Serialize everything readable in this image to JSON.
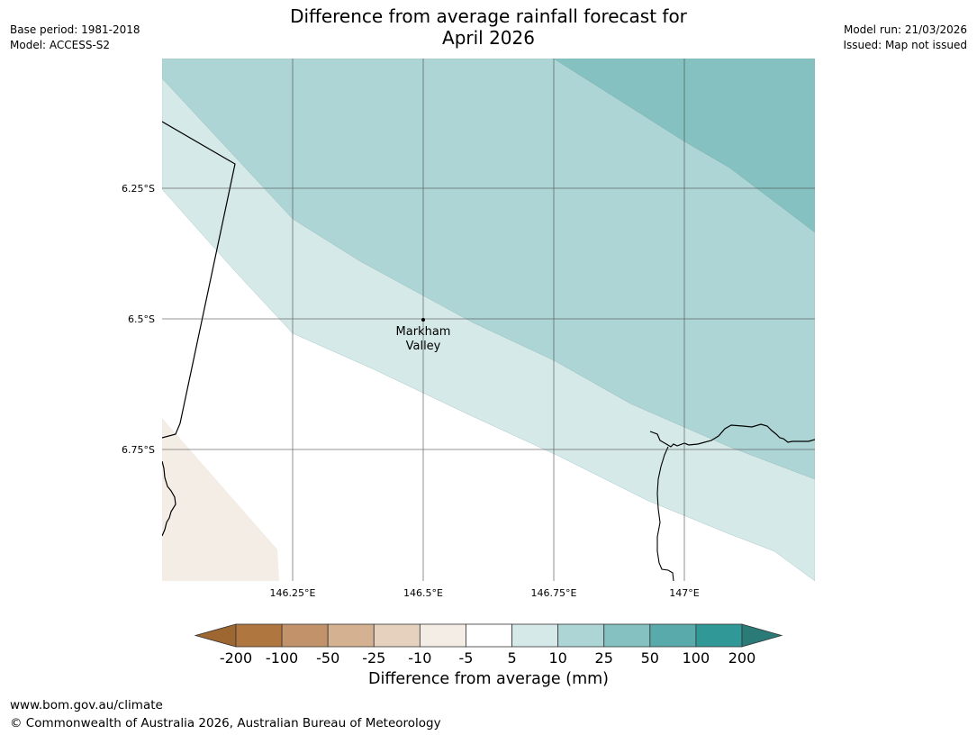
{
  "header": {
    "title_line1": "Difference from average rainfall forecast for",
    "title_line2": "April 2026",
    "base_period": "Base period: 1981-2018",
    "model": "Model: ACCESS-S2",
    "model_run": "Model run: 21/03/2026",
    "issued": "Issued: Map not issued"
  },
  "map": {
    "lat_labels": [
      "6.25°S",
      "6.5°S",
      "6.75°S"
    ],
    "lon_labels": [
      "146.25°E",
      "146.5°E",
      "146.75°E",
      "147°E"
    ],
    "place": {
      "name_line1": "Markham",
      "name_line2": "Valley"
    },
    "colors": {
      "land_light": "#f3ede6",
      "band_5_10": "#d5e9e8",
      "band_10_25": "#aed5d5",
      "band_25_50": "#84c1c0"
    }
  },
  "colorbar": {
    "title": "Difference from average (mm)",
    "ticks": [
      "-200",
      "-100",
      "-50",
      "-25",
      "-10",
      "-5",
      "5",
      "10",
      "25",
      "50",
      "100",
      "200"
    ],
    "colors": [
      "#9e6630",
      "#b0763f",
      "#c2936b",
      "#d4b190",
      "#e5d1be",
      "#f3ede6",
      "#ffffff",
      "#d5e9e8",
      "#aed5d5",
      "#84c1c0",
      "#59aaab",
      "#309897",
      "#2a7a77"
    ]
  },
  "footer": {
    "url": "www.bom.gov.au/climate",
    "copyright": "© Commonwealth of Australia 2026, Australian Bureau of Meteorology"
  }
}
